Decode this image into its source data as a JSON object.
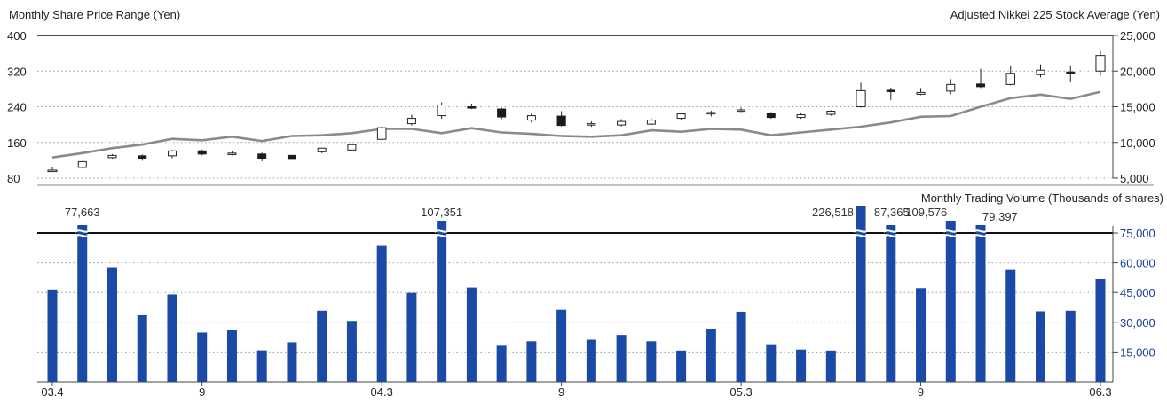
{
  "chart_data": [
    {
      "type": "candlestick",
      "title_left": "Monthly Share Price Range (Yen)",
      "title_right": "Adjusted Nikkei 225 Stock Average (Yen)",
      "left_axis": {
        "range": [
          80,
          400
        ],
        "ticks": [
          "400",
          "320",
          "240",
          "160",
          "80"
        ],
        "tick_values": [
          400,
          320,
          240,
          160,
          80
        ]
      },
      "right_axis": {
        "range": [
          5000,
          25000
        ],
        "ticks": [
          "25,000",
          "20,000",
          "15,000",
          "10,000",
          "5,000"
        ],
        "tick_values": [
          25000,
          20000,
          15000,
          10000,
          5000
        ]
      },
      "candles": [
        {
          "o": 98,
          "c": 98,
          "h": 105,
          "l": 95,
          "up": true
        },
        {
          "o": 104,
          "c": 117,
          "h": 118,
          "l": 103,
          "up": true
        },
        {
          "o": 126,
          "c": 131,
          "h": 134,
          "l": 123,
          "up": true
        },
        {
          "o": 130,
          "c": 124,
          "h": 133,
          "l": 119,
          "up": false
        },
        {
          "o": 130,
          "c": 141,
          "h": 143,
          "l": 125,
          "up": true
        },
        {
          "o": 141,
          "c": 134,
          "h": 144,
          "l": 131,
          "up": false
        },
        {
          "o": 134,
          "c": 136,
          "h": 140,
          "l": 131,
          "up": true
        },
        {
          "o": 134,
          "c": 124,
          "h": 137,
          "l": 118,
          "up": false
        },
        {
          "o": 131,
          "c": 122,
          "h": 131,
          "l": 122,
          "up": false
        },
        {
          "o": 139,
          "c": 147,
          "h": 148,
          "l": 136,
          "up": true
        },
        {
          "o": 143,
          "c": 155,
          "h": 157,
          "l": 142,
          "up": true
        },
        {
          "o": 167,
          "c": 193,
          "h": 196,
          "l": 166,
          "up": true
        },
        {
          "o": 202,
          "c": 214,
          "h": 222,
          "l": 198,
          "up": true
        },
        {
          "o": 220,
          "c": 244,
          "h": 250,
          "l": 213,
          "up": true
        },
        {
          "o": 240,
          "c": 238,
          "h": 247,
          "l": 235,
          "up": false
        },
        {
          "o": 235,
          "c": 217,
          "h": 238,
          "l": 212,
          "up": false
        },
        {
          "o": 210,
          "c": 220,
          "h": 225,
          "l": 204,
          "up": true
        },
        {
          "o": 219,
          "c": 198,
          "h": 230,
          "l": 196,
          "up": false
        },
        {
          "o": 201,
          "c": 202,
          "h": 207,
          "l": 195,
          "up": true
        },
        {
          "o": 199,
          "c": 207,
          "h": 212,
          "l": 196,
          "up": true
        },
        {
          "o": 201,
          "c": 210,
          "h": 214,
          "l": 199,
          "up": true
        },
        {
          "o": 214,
          "c": 224,
          "h": 226,
          "l": 211,
          "up": true
        },
        {
          "o": 225,
          "c": 227,
          "h": 231,
          "l": 218,
          "up": true
        },
        {
          "o": 231,
          "c": 233,
          "h": 238,
          "l": 228,
          "up": true
        },
        {
          "o": 226,
          "c": 216,
          "h": 228,
          "l": 213,
          "up": false
        },
        {
          "o": 216,
          "c": 222,
          "h": 225,
          "l": 213,
          "up": true
        },
        {
          "o": 223,
          "c": 230,
          "h": 232,
          "l": 220,
          "up": true
        },
        {
          "o": 240,
          "c": 276,
          "h": 294,
          "l": 238,
          "up": true
        },
        {
          "o": 277,
          "c": 274,
          "h": 283,
          "l": 255,
          "up": false
        },
        {
          "o": 268,
          "c": 272,
          "h": 282,
          "l": 266,
          "up": true
        },
        {
          "o": 275,
          "c": 290,
          "h": 302,
          "l": 268,
          "up": true
        },
        {
          "o": 291,
          "c": 285,
          "h": 325,
          "l": 282,
          "up": false
        },
        {
          "o": 290,
          "c": 315,
          "h": 332,
          "l": 288,
          "up": true
        },
        {
          "o": 312,
          "c": 322,
          "h": 335,
          "l": 306,
          "up": true
        },
        {
          "o": 318,
          "c": 316,
          "h": 333,
          "l": 295,
          "up": false
        },
        {
          "o": 320,
          "c": 355,
          "h": 367,
          "l": 310,
          "up": true
        }
      ],
      "nikkei": [
        7900,
        8500,
        9200,
        9700,
        10500,
        10300,
        10800,
        10200,
        10900,
        11000,
        11300,
        11900,
        11900,
        11300,
        12000,
        11400,
        11200,
        10900,
        10800,
        11000,
        11700,
        11500,
        11900,
        11800,
        11000,
        11400,
        11800,
        12200,
        12800,
        13600,
        13700,
        15000,
        16200,
        16700,
        16100,
        17100
      ]
    },
    {
      "type": "bar",
      "title": "Monthly Trading Volume (Thousands of shares)",
      "right_axis": {
        "range": [
          0,
          75000
        ],
        "ticks": [
          "75,000",
          "60,000",
          "45,000",
          "30,000",
          "15,000"
        ],
        "tick_values": [
          75000,
          60000,
          45000,
          30000,
          15000
        ]
      },
      "x_tick_labels": [
        {
          "index": 0,
          "label": "03.4"
        },
        {
          "index": 5,
          "label": "9"
        },
        {
          "index": 11,
          "label": "04.3"
        },
        {
          "index": 17,
          "label": "9"
        },
        {
          "index": 23,
          "label": "05.3"
        },
        {
          "index": 29,
          "label": "9"
        },
        {
          "index": 35,
          "label": "06.3"
        }
      ],
      "values": [
        46500,
        77663,
        57800,
        33800,
        44000,
        24800,
        25900,
        15800,
        19900,
        35800,
        30700,
        68500,
        44800,
        107351,
        47500,
        18600,
        20400,
        36300,
        21200,
        23600,
        20400,
        15700,
        26800,
        35300,
        18900,
        16200,
        15700,
        226518,
        87365,
        47200,
        109576,
        79397,
        56400,
        35500,
        35800,
        51800
      ],
      "labels": [
        "",
        "77,663",
        "",
        "",
        "",
        "",
        "",
        "",
        "",
        "",
        "",
        "",
        "",
        "107,351",
        "",
        "",
        "",
        "",
        "",
        "",
        "",
        "",
        "",
        "",
        "",
        "",
        "",
        "226,518",
        "87,365",
        "",
        "109,576",
        "79,397",
        "",
        "",
        "",
        ""
      ]
    }
  ]
}
